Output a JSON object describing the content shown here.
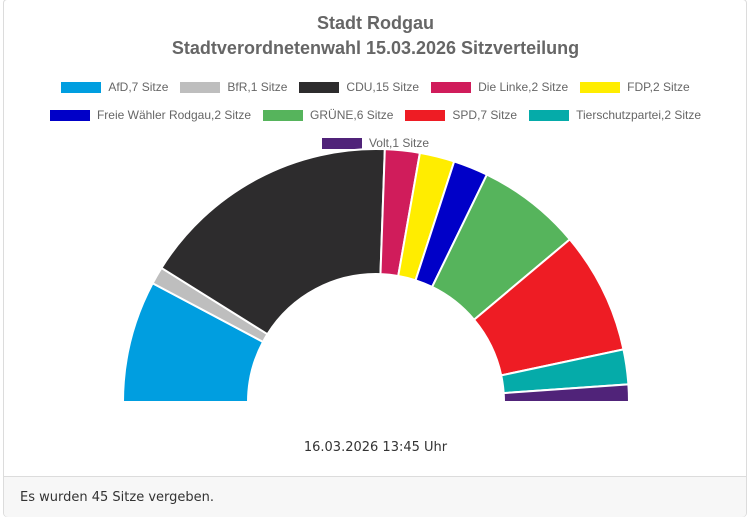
{
  "chart_data": {
    "type": "pie",
    "variant": "half-donut",
    "title": "Stadt Rodgau",
    "subtitle": "Stadtverordnetenwahl 15.03.2026 Sitzverteilung",
    "legend_placement": "top",
    "slices": [
      {
        "label": "AfD,7 Sitze",
        "party": "AfD",
        "value": 7,
        "color": "#009ee0"
      },
      {
        "label": "BfR,1 Sitze",
        "party": "BfR",
        "value": 1,
        "color": "#bebebe"
      },
      {
        "label": "CDU,15 Sitze",
        "party": "CDU",
        "value": 15,
        "color": "#2d2c2d"
      },
      {
        "label": "Die Linke,2 Sitze",
        "party": "Die Linke",
        "value": 2,
        "color": "#d01c5b"
      },
      {
        "label": "FDP,2 Sitze",
        "party": "FDP",
        "value": 2,
        "color": "#ffed00"
      },
      {
        "label": "Freie Wähler Rodgau,2 Sitze",
        "party": "Freie Wähler Rodgau",
        "value": 2,
        "color": "#0000c8"
      },
      {
        "label": "GRÜNE,6 Sitze",
        "party": "GRÜNE",
        "value": 6,
        "color": "#56b45c"
      },
      {
        "label": "SPD,7 Sitze",
        "party": "SPD",
        "value": 7,
        "color": "#ee1c24"
      },
      {
        "label": "Tierschutzpartei,2 Sitze",
        "party": "Tierschutzpartei",
        "value": 2,
        "color": "#05aba9"
      },
      {
        "label": "Volt,1 Sitze",
        "party": "Volt",
        "value": 1,
        "color": "#502379"
      }
    ]
  },
  "timestamp": "16.03.2026 13:45 Uhr",
  "footer": {
    "text": "Es wurden 45 Sitze vergeben."
  }
}
